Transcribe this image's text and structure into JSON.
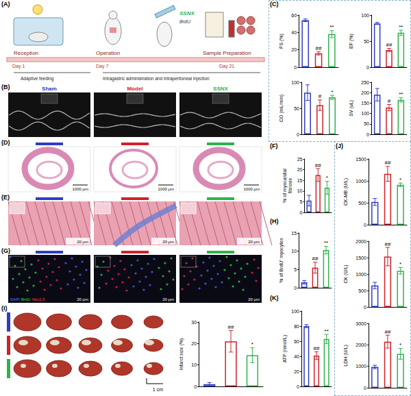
{
  "chart_data": [
    {
      "type": "bar",
      "ylabel": "FS (%)",
      "categories": [
        null,
        null,
        null
      ],
      "values": [
        54,
        16,
        38
      ],
      "errors": [
        1.5,
        2,
        4
      ],
      "annotations": [
        null,
        "##",
        "**"
      ],
      "colors": [
        "#2e3cc4",
        "#d0202a",
        "#2db34a"
      ],
      "ylim": [
        0,
        60
      ],
      "yticks": [
        0,
        20,
        40,
        60
      ],
      "grid": false
    },
    {
      "type": "bar",
      "ylabel": "EF (%)",
      "categories": [
        null,
        null,
        null
      ],
      "values": [
        84,
        33,
        66
      ],
      "errors": [
        2,
        3,
        5
      ],
      "annotations": [
        null,
        "##",
        "**"
      ],
      "colors": [
        "#2e3cc4",
        "#d0202a",
        "#2db34a"
      ],
      "ylim": [
        0,
        100
      ],
      "yticks": [
        0,
        50,
        100
      ],
      "grid": false
    },
    {
      "type": "bar",
      "ylabel": "CO (mL/min)",
      "categories": [
        null,
        null,
        null
      ],
      "values": [
        80,
        56,
        71
      ],
      "errors": [
        15,
        10,
        4
      ],
      "annotations": [
        null,
        "#",
        "*"
      ],
      "colors": [
        "#2e3cc4",
        "#d0202a",
        "#2db34a"
      ],
      "ylim": [
        0,
        100
      ],
      "yticks": [
        0,
        50,
        100
      ],
      "grid": false
    },
    {
      "type": "bar",
      "ylabel": "SV (uL)",
      "categories": [
        null,
        null,
        null
      ],
      "values": [
        190,
        128,
        165
      ],
      "errors": [
        30,
        15,
        10
      ],
      "annotations": [
        null,
        "#",
        "**"
      ],
      "colors": [
        "#2e3cc4",
        "#d0202a",
        "#2db34a"
      ],
      "ylim": [
        0,
        250
      ],
      "yticks": [
        0,
        50,
        100,
        150,
        200,
        250
      ],
      "grid": false
    },
    {
      "type": "bar",
      "ylabel": "% of myocardial fibrosis",
      "categories": [
        null,
        null,
        null
      ],
      "values": [
        5.5,
        17.5,
        11.5
      ],
      "errors": [
        2.5,
        3,
        3
      ],
      "annotations": [
        null,
        "##",
        "*"
      ],
      "colors": [
        "#2e3cc4",
        "#d0202a",
        "#2db34a"
      ],
      "ylim": [
        0,
        25
      ],
      "yticks": [
        0,
        5,
        10,
        15,
        20,
        25
      ],
      "grid": false
    },
    {
      "type": "bar",
      "ylabel": "% of BrdU⁺ myocytes",
      "categories": [
        null,
        null,
        null
      ],
      "values": [
        1.5,
        5.5,
        10.3
      ],
      "errors": [
        0.5,
        1.5,
        1
      ],
      "annotations": [
        null,
        "##",
        "**"
      ],
      "colors": [
        "#2e3cc4",
        "#d0202a",
        "#2db34a"
      ],
      "ylim": [
        0,
        15
      ],
      "yticks": [
        0,
        5,
        10,
        15
      ],
      "grid": false
    },
    {
      "type": "bar",
      "ylabel": "Infarct size (%)",
      "categories": [
        null,
        null,
        null
      ],
      "values": [
        1,
        21,
        14.5
      ],
      "errors": [
        0.8,
        5,
        3.5
      ],
      "annotations": [
        null,
        "##",
        "*"
      ],
      "colors": [
        "#2e3cc4",
        "#d0202a",
        "#2db34a"
      ],
      "ylim": [
        0,
        30
      ],
      "yticks": [
        0,
        10,
        20,
        30
      ],
      "grid": false
    },
    {
      "type": "bar",
      "ylabel": "CK-MB (U/L)",
      "categories": [
        null,
        null,
        null
      ],
      "values": [
        520,
        1160,
        910
      ],
      "errors": [
        80,
        170,
        40
      ],
      "annotations": [
        null,
        "##",
        "*"
      ],
      "colors": [
        "#2e3cc4",
        "#d0202a",
        "#2db34a"
      ],
      "ylim": [
        0,
        1500
      ],
      "yticks": [
        0,
        500,
        1000,
        1500
      ],
      "grid": false
    },
    {
      "type": "bar",
      "ylabel": "CK (U/L)",
      "categories": [
        null,
        null,
        null
      ],
      "values": [
        650,
        1530,
        1100
      ],
      "errors": [
        100,
        280,
        100
      ],
      "annotations": [
        null,
        "##",
        "*"
      ],
      "colors": [
        "#2e3cc4",
        "#d0202a",
        "#2db34a"
      ],
      "ylim": [
        0,
        2000
      ],
      "yticks": [
        0,
        500,
        1000,
        1500,
        2000
      ],
      "grid": false
    },
    {
      "type": "bar",
      "ylabel": "LDH (U/L)",
      "categories": [
        null,
        null,
        null
      ],
      "values": [
        970,
        2150,
        1580
      ],
      "errors": [
        80,
        300,
        250
      ],
      "annotations": [
        null,
        "##",
        "*"
      ],
      "colors": [
        "#2e3cc4",
        "#d0202a",
        "#2db34a"
      ],
      "ylim": [
        0,
        3000
      ],
      "yticks": [
        0,
        1000,
        2000,
        3000
      ],
      "grid": false
    },
    {
      "type": "bar",
      "ylabel": "ATP (nmol/L)",
      "categories": [
        null,
        null,
        null
      ],
      "values": [
        80,
        41,
        63
      ],
      "errors": [
        2,
        5,
        6
      ],
      "annotations": [
        null,
        "##",
        "**"
      ],
      "colors": [
        "#2e3cc4",
        "#d0202a",
        "#2db34a"
      ],
      "ylim": [
        0,
        100
      ],
      "yticks": [
        0,
        20,
        40,
        60,
        80,
        100
      ],
      "grid": false
    }
  ],
  "figure": {
    "panel_labels": [
      "(A)",
      "(B)",
      "(C)",
      "(D)",
      "(E)",
      "(F)",
      "(G)",
      "(H)",
      "(I)",
      "(J)",
      "(K)"
    ],
    "groups": [
      {
        "name": "Sham",
        "color": "#2e3cc4"
      },
      {
        "name": "Model",
        "color": "#d0202a"
      },
      {
        "name": "SSNX",
        "color": "#2db34a"
      }
    ],
    "timeline": {
      "stages": [
        "Reception",
        "Operation",
        "Sample Preparation"
      ],
      "days": [
        "Day 1",
        "Day 7",
        "Day 21"
      ],
      "periods": [
        "Adaptive feeding",
        "Intragastric administration and intraperitoneal injection"
      ],
      "drugs": [
        "SSNX",
        "BrdU"
      ]
    },
    "scale_bars": {
      "D": "1000 μm",
      "E": "20 μm",
      "G": "20 μm",
      "I": "1 cm"
    },
    "stains": [
      {
        "name": "DAPI",
        "color": "#5a78ff"
      },
      {
        "name": "BrdU",
        "color": "#3ddc4a"
      },
      {
        "name": "Nkx2.5",
        "color": "#ff3a55"
      }
    ]
  }
}
